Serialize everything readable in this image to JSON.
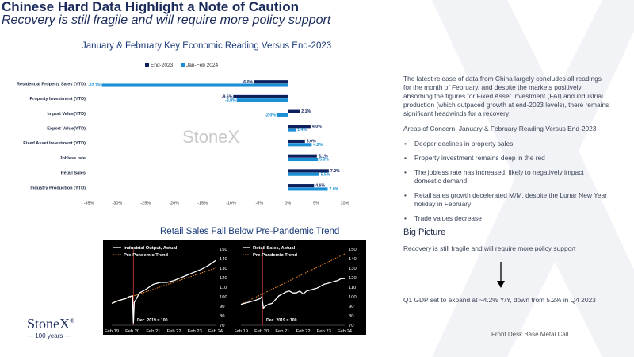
{
  "header": {
    "title": "Chinese Hard Data Highlight a Note of Caution",
    "subtitle": "Recovery is still fragile and will require more policy support"
  },
  "watermark_text": "StoneX",
  "colors": {
    "end2023": "#0d1f5c",
    "janfeb2024": "#1b8fd6",
    "actual": "#ffffff",
    "trend": "#f08a24",
    "covid_line": "#c0392b"
  },
  "chart_data": [
    {
      "type": "bar",
      "orientation": "horizontal",
      "title": "January & February Key Economic Reading Versus End-2023",
      "categories": [
        "Residential Property Sales (YTD)",
        "Property Investment (YTD)",
        "Import Value(YTD)",
        "Export Value(YTD)",
        "Fixed Asset Investment (YTD)",
        "Jobless rate",
        "Retail Sales",
        "Industry Production (YTD)"
      ],
      "series": [
        {
          "name": "End-2023",
          "values": [
            -6.0,
            -9.6,
            2.1,
            4.0,
            3.0,
            5.1,
            7.2,
            4.6
          ]
        },
        {
          "name": "Jan-Feb 2024",
          "values": [
            -32.7,
            -9.0,
            -2.0,
            1.4,
            4.2,
            5.3,
            5.5,
            7.0
          ]
        }
      ],
      "data_labels": [
        [
          "-6.0%",
          "-9.6%",
          "2.1%",
          "4.0%",
          "3.0%",
          "5.1%",
          "7.2%",
          "4.6%"
        ],
        [
          "-32.7%",
          "-9.0%",
          "-2.0%",
          "1.4%",
          "4.2%",
          "5.3%",
          "5.5%",
          "7.0%"
        ]
      ],
      "xlim": [
        -35,
        10
      ],
      "xticks": [
        "-35%",
        "-30%",
        "-25%",
        "-20%",
        "-15%",
        "-10%",
        "-5%",
        "0%",
        "5%",
        "10%"
      ],
      "legend_placement": "top"
    },
    {
      "type": "line",
      "title": "Industrial Output, Actual",
      "note": "Dec. 2019 = 100",
      "x_ticks": [
        "Feb 19",
        "Feb 20",
        "Feb 21",
        "Feb 22",
        "Feb 23",
        "Feb 24"
      ],
      "ylim": [
        70,
        150
      ],
      "y_ticks": [
        "70",
        "80",
        "90",
        "100",
        "110",
        "120",
        "130",
        "140",
        "150"
      ],
      "series": [
        {
          "name": "Industrial Output, Actual",
          "x": [
            0,
            4,
            8,
            10,
            12,
            12.5,
            13,
            14,
            16,
            20,
            24,
            28,
            32,
            36,
            40,
            44,
            48,
            52,
            56,
            60
          ],
          "values": [
            93,
            96,
            98,
            100,
            101,
            72,
            94,
            97,
            104,
            108,
            113,
            115,
            115,
            117,
            120,
            123,
            126,
            129,
            133,
            138
          ]
        },
        {
          "name": "Pre-Pandemic Trend",
          "x": [
            0,
            60
          ],
          "values": [
            93,
            130
          ]
        }
      ]
    },
    {
      "type": "line",
      "title": "Retail Sales, Actual",
      "note": "Dec. 2019 = 100",
      "x_ticks": [
        "Feb 19",
        "Feb 20",
        "Feb 21",
        "Feb 22",
        "Feb 23",
        "Feb 24"
      ],
      "ylim": [
        70,
        150
      ],
      "y_ticks": [
        "70",
        "80",
        "90",
        "100",
        "110",
        "120",
        "130",
        "140",
        "150"
      ],
      "series": [
        {
          "name": "Retail Sales, Actual",
          "x": [
            0,
            4,
            8,
            11,
            12,
            13,
            14,
            16,
            18,
            20,
            22,
            24,
            26,
            28,
            30,
            32,
            34,
            36,
            38,
            40,
            42,
            44,
            46,
            48,
            50,
            52,
            54,
            56,
            58,
            60
          ],
          "values": [
            92,
            94,
            96,
            98,
            100,
            88,
            90,
            92,
            93,
            97,
            101,
            103,
            105,
            106,
            104,
            104,
            106,
            103,
            106,
            107,
            108,
            109,
            111,
            113,
            114,
            115,
            116,
            117,
            119,
            119
          ]
        },
        {
          "name": "Pre-Pandemic Trend",
          "x": [
            0,
            60
          ],
          "values": [
            92,
            145
          ]
        }
      ]
    }
  ],
  "chart2_heading": "Retail Sales Fall Below Pre-Pandemic Trend",
  "panel": {
    "intro": "The latest release of data from China largely concludes all readings for the month of February, and despite the markets positively absorbing the figures for Fixed Asset Investment (FAI) and industrial production (which outpaced growth at end-2023 levels), there remains significant headwinds for a recovery:",
    "concerns_heading": "Areas of Concern: January & February Reading Versus End-2023",
    "bullets": [
      "Deeper declines in property sales",
      "Property investment remains deep in the red",
      "The jobless rate has increased, likely to negatively impact domestic demand",
      "Retail sales growth decelerated M/M, despite the Lunar New Year holiday in February",
      "Trade values decrease"
    ],
    "big_picture_heading": "Big Picture",
    "big_picture_text": "Recovery is still fragile and will require more policy support",
    "gdp_text": "Q1 GDP set to expand at ~4.2% Y/Y, down from 5.2% in Q4 2023"
  },
  "footer": {
    "right_text": "Front Desk Base Metal Call",
    "logo_text": "StoneX",
    "logo_sup": "®",
    "years_text": "100 years"
  }
}
